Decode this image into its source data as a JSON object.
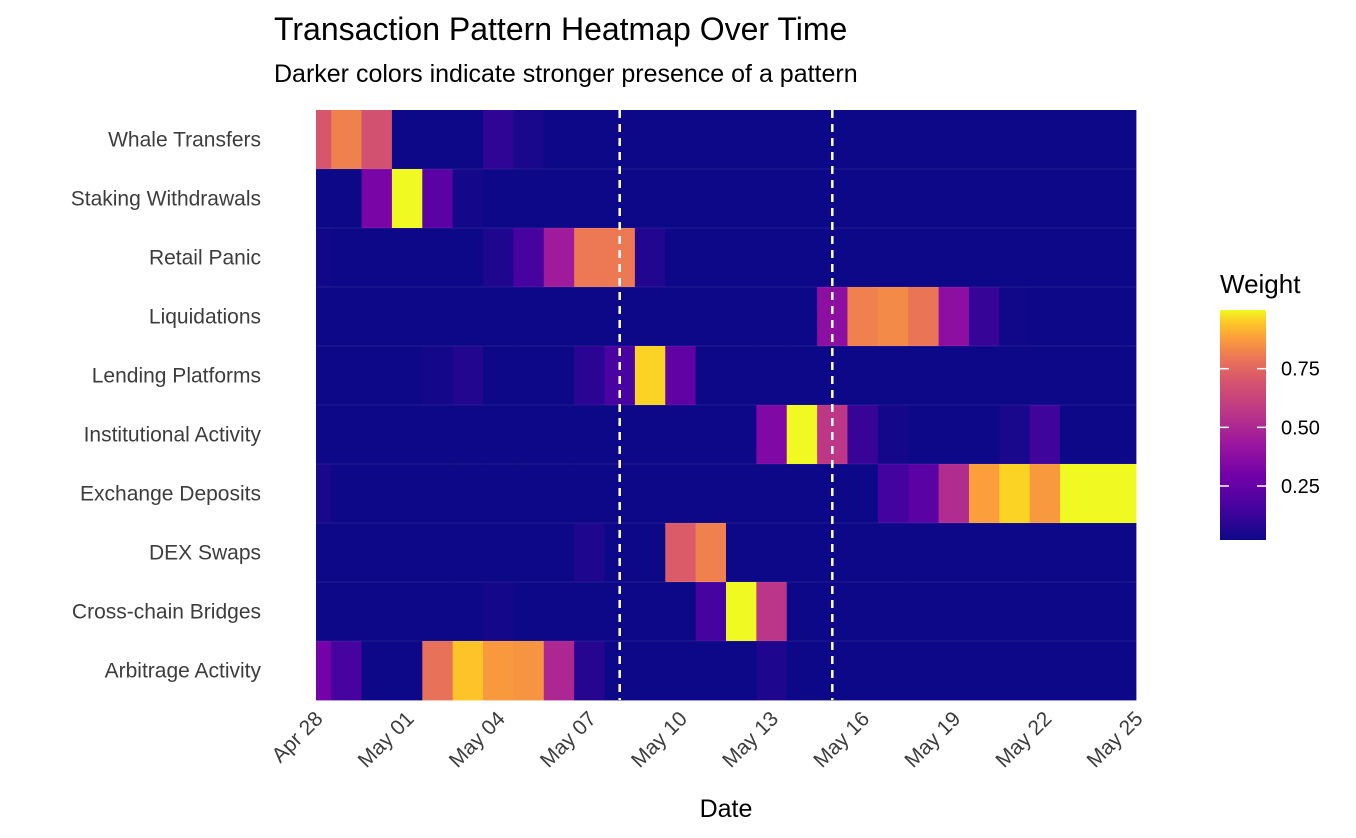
{
  "chart_data": {
    "type": "heatmap",
    "title": "Transaction Pattern Heatmap Over Time",
    "subtitle": "Darker colors indicate stronger presence of a pattern",
    "xlabel": "Date",
    "ylabel": "",
    "x_start": "2024-04-28",
    "x_tick_labels": [
      "Apr 28",
      "May 01",
      "May 04",
      "May 07",
      "May 10",
      "May 13",
      "May 16",
      "May 19",
      "May 22",
      "May 25"
    ],
    "x_dates": [
      "Apr 28",
      "Apr 29",
      "Apr 30",
      "May 01",
      "May 02",
      "May 03",
      "May 04",
      "May 05",
      "May 06",
      "May 07",
      "May 08",
      "May 09",
      "May 10",
      "May 11",
      "May 12",
      "May 13",
      "May 14",
      "May 15",
      "May 16",
      "May 17",
      "May 18",
      "May 19",
      "May 20",
      "May 21",
      "May 22",
      "May 23",
      "May 24",
      "May 25"
    ],
    "categories_top_to_bottom": [
      "Whale Transfers",
      "Staking Withdrawals",
      "Retail Panic",
      "Liquidations",
      "Lending Platforms",
      "Institutional Activity",
      "Exchange Deposits",
      "DEX Swaps",
      "Cross-chain Bridges",
      "Arbitrage Activity"
    ],
    "values": [
      [
        0.7,
        0.82,
        0.68,
        0.02,
        0.02,
        0.02,
        0.1,
        0.05,
        0.02,
        0.02,
        0.02,
        0.02,
        0.02,
        0.02,
        0.02,
        0.02,
        0.02,
        0.02,
        0.02,
        0.02,
        0.02,
        0.02,
        0.02,
        0.02,
        0.02,
        0.02,
        0.02,
        0.02
      ],
      [
        0.02,
        0.02,
        0.32,
        1.0,
        0.22,
        0.04,
        0.02,
        0.02,
        0.02,
        0.02,
        0.02,
        0.02,
        0.02,
        0.02,
        0.02,
        0.02,
        0.02,
        0.02,
        0.02,
        0.02,
        0.02,
        0.02,
        0.02,
        0.02,
        0.02,
        0.02,
        0.02,
        0.02
      ],
      [
        0.03,
        0.02,
        0.02,
        0.02,
        0.02,
        0.02,
        0.06,
        0.16,
        0.45,
        0.8,
        0.8,
        0.07,
        0.02,
        0.02,
        0.02,
        0.02,
        0.02,
        0.02,
        0.02,
        0.02,
        0.02,
        0.02,
        0.02,
        0.02,
        0.02,
        0.02,
        0.02,
        0.02
      ],
      [
        0.02,
        0.02,
        0.02,
        0.02,
        0.02,
        0.02,
        0.02,
        0.02,
        0.02,
        0.02,
        0.02,
        0.02,
        0.02,
        0.02,
        0.02,
        0.02,
        0.02,
        0.38,
        0.82,
        0.84,
        0.79,
        0.38,
        0.12,
        0.03,
        0.02,
        0.02,
        0.02,
        0.02
      ],
      [
        0.02,
        0.02,
        0.02,
        0.02,
        0.04,
        0.07,
        0.02,
        0.02,
        0.02,
        0.09,
        0.17,
        0.96,
        0.24,
        0.02,
        0.02,
        0.02,
        0.02,
        0.02,
        0.02,
        0.02,
        0.02,
        0.02,
        0.02,
        0.02,
        0.02,
        0.02,
        0.02,
        0.02
      ],
      [
        0.02,
        0.02,
        0.02,
        0.02,
        0.02,
        0.02,
        0.02,
        0.02,
        0.02,
        0.02,
        0.02,
        0.02,
        0.02,
        0.02,
        0.02,
        0.34,
        1.0,
        0.57,
        0.12,
        0.04,
        0.02,
        0.02,
        0.02,
        0.05,
        0.14,
        0.02,
        0.02,
        0.02
      ],
      [
        0.05,
        0.02,
        0.02,
        0.02,
        0.02,
        0.02,
        0.02,
        0.02,
        0.02,
        0.02,
        0.02,
        0.02,
        0.02,
        0.02,
        0.02,
        0.02,
        0.02,
        0.02,
        0.02,
        0.15,
        0.22,
        0.52,
        0.88,
        0.96,
        0.87,
        1.0,
        1.0,
        1.0
      ],
      [
        0.02,
        0.02,
        0.02,
        0.02,
        0.02,
        0.02,
        0.02,
        0.02,
        0.02,
        0.06,
        0.02,
        0.02,
        0.72,
        0.82,
        0.02,
        0.02,
        0.02,
        0.02,
        0.02,
        0.02,
        0.02,
        0.02,
        0.02,
        0.02,
        0.02,
        0.02,
        0.02,
        0.02
      ],
      [
        0.02,
        0.02,
        0.02,
        0.02,
        0.02,
        0.02,
        0.04,
        0.02,
        0.02,
        0.02,
        0.02,
        0.02,
        0.02,
        0.16,
        1.0,
        0.56,
        0.02,
        0.02,
        0.02,
        0.02,
        0.02,
        0.02,
        0.02,
        0.02,
        0.02,
        0.02,
        0.02,
        0.02
      ],
      [
        0.3,
        0.16,
        0.02,
        0.02,
        0.78,
        0.94,
        0.87,
        0.86,
        0.5,
        0.08,
        0.02,
        0.02,
        0.02,
        0.02,
        0.02,
        0.06,
        0.02,
        0.02,
        0.02,
        0.02,
        0.02,
        0.02,
        0.02,
        0.02,
        0.02,
        0.02,
        0.02,
        0.02
      ]
    ],
    "reference_lines": [
      "May 08",
      "May 15"
    ],
    "reference_line_style": "white dashed",
    "colorscale": "plasma",
    "legend": {
      "title": "Weight",
      "position": "right",
      "tick_labels": [
        "0.25",
        "0.50",
        "0.75"
      ],
      "range": [
        0.02,
        1.0
      ]
    },
    "grid": false,
    "panel_background": "#0d0887"
  }
}
